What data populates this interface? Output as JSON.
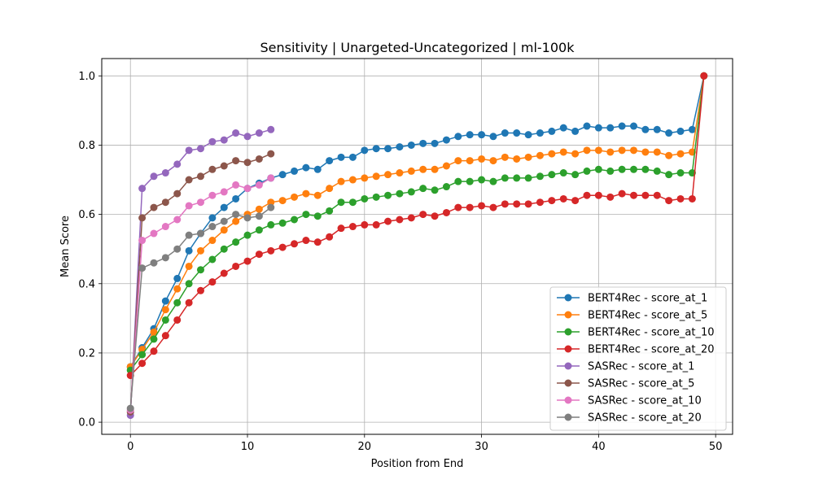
{
  "chart_data": {
    "type": "line",
    "title": "Sensitivity | Unargeted-Uncategorized | ml-100k",
    "xlabel": "Position from End",
    "ylabel": "Mean Score",
    "xlim": [
      -2.45,
      51.45
    ],
    "ylim": [
      -0.035,
      1.05
    ],
    "xticks": [
      0,
      10,
      20,
      30,
      40,
      50
    ],
    "xtick_labels": [
      "0",
      "10",
      "20",
      "30",
      "40",
      "50"
    ],
    "yticks": [
      0.0,
      0.2,
      0.4,
      0.6,
      0.8,
      1.0
    ],
    "ytick_labels": [
      "0.0",
      "0.2",
      "0.4",
      "0.6",
      "0.8",
      "1.0"
    ],
    "grid": true,
    "legend_position": "lower-right",
    "series": [
      {
        "name": "BERT4Rec - score_at_1",
        "color": "#1f77b4",
        "x": [
          0,
          1,
          2,
          3,
          4,
          5,
          6,
          7,
          8,
          9,
          10,
          11,
          12,
          13,
          14,
          15,
          16,
          17,
          18,
          19,
          20,
          21,
          22,
          23,
          24,
          25,
          26,
          27,
          28,
          29,
          30,
          31,
          32,
          33,
          34,
          35,
          36,
          37,
          38,
          39,
          40,
          41,
          42,
          43,
          44,
          45,
          46,
          47,
          48,
          49
        ],
        "values": [
          0.16,
          0.215,
          0.27,
          0.35,
          0.415,
          0.495,
          0.545,
          0.59,
          0.62,
          0.645,
          0.675,
          0.69,
          0.705,
          0.715,
          0.725,
          0.735,
          0.73,
          0.755,
          0.765,
          0.765,
          0.785,
          0.79,
          0.79,
          0.795,
          0.8,
          0.805,
          0.805,
          0.815,
          0.825,
          0.83,
          0.83,
          0.825,
          0.835,
          0.835,
          0.83,
          0.835,
          0.84,
          0.85,
          0.84,
          0.855,
          0.85,
          0.85,
          0.855,
          0.855,
          0.845,
          0.845,
          0.835,
          0.84,
          0.845,
          1.0
        ]
      },
      {
        "name": "BERT4Rec - score_at_5",
        "color": "#ff7f0e",
        "x": [
          0,
          1,
          2,
          3,
          4,
          5,
          6,
          7,
          8,
          9,
          10,
          11,
          12,
          13,
          14,
          15,
          16,
          17,
          18,
          19,
          20,
          21,
          22,
          23,
          24,
          25,
          26,
          27,
          28,
          29,
          30,
          31,
          32,
          33,
          34,
          35,
          36,
          37,
          38,
          39,
          40,
          41,
          42,
          43,
          44,
          45,
          46,
          47,
          48,
          49
        ],
        "values": [
          0.16,
          0.21,
          0.26,
          0.325,
          0.385,
          0.45,
          0.495,
          0.525,
          0.555,
          0.58,
          0.6,
          0.615,
          0.635,
          0.64,
          0.65,
          0.66,
          0.655,
          0.675,
          0.695,
          0.7,
          0.705,
          0.71,
          0.715,
          0.72,
          0.725,
          0.73,
          0.73,
          0.74,
          0.755,
          0.755,
          0.76,
          0.755,
          0.765,
          0.76,
          0.765,
          0.77,
          0.775,
          0.78,
          0.775,
          0.785,
          0.785,
          0.78,
          0.785,
          0.785,
          0.78,
          0.78,
          0.77,
          0.775,
          0.78,
          1.0
        ]
      },
      {
        "name": "BERT4Rec - score_at_10",
        "color": "#2ca02c",
        "x": [
          0,
          1,
          2,
          3,
          4,
          5,
          6,
          7,
          8,
          9,
          10,
          11,
          12,
          13,
          14,
          15,
          16,
          17,
          18,
          19,
          20,
          21,
          22,
          23,
          24,
          25,
          26,
          27,
          28,
          29,
          30,
          31,
          32,
          33,
          34,
          35,
          36,
          37,
          38,
          39,
          40,
          41,
          42,
          43,
          44,
          45,
          46,
          47,
          48,
          49
        ],
        "values": [
          0.15,
          0.195,
          0.24,
          0.295,
          0.345,
          0.4,
          0.44,
          0.47,
          0.5,
          0.52,
          0.54,
          0.555,
          0.57,
          0.575,
          0.585,
          0.6,
          0.595,
          0.61,
          0.635,
          0.635,
          0.645,
          0.65,
          0.655,
          0.66,
          0.665,
          0.675,
          0.67,
          0.68,
          0.695,
          0.695,
          0.7,
          0.695,
          0.705,
          0.705,
          0.705,
          0.71,
          0.715,
          0.72,
          0.715,
          0.725,
          0.73,
          0.725,
          0.73,
          0.73,
          0.73,
          0.725,
          0.715,
          0.72,
          0.72,
          1.0
        ]
      },
      {
        "name": "BERT4Rec - score_at_20",
        "color": "#d62728",
        "x": [
          0,
          1,
          2,
          3,
          4,
          5,
          6,
          7,
          8,
          9,
          10,
          11,
          12,
          13,
          14,
          15,
          16,
          17,
          18,
          19,
          20,
          21,
          22,
          23,
          24,
          25,
          26,
          27,
          28,
          29,
          30,
          31,
          32,
          33,
          34,
          35,
          36,
          37,
          38,
          39,
          40,
          41,
          42,
          43,
          44,
          45,
          46,
          47,
          48,
          49
        ],
        "values": [
          0.135,
          0.17,
          0.205,
          0.25,
          0.295,
          0.345,
          0.38,
          0.405,
          0.43,
          0.45,
          0.465,
          0.485,
          0.495,
          0.505,
          0.515,
          0.525,
          0.52,
          0.535,
          0.56,
          0.565,
          0.57,
          0.57,
          0.58,
          0.585,
          0.59,
          0.6,
          0.595,
          0.605,
          0.62,
          0.62,
          0.625,
          0.62,
          0.63,
          0.63,
          0.63,
          0.635,
          0.64,
          0.645,
          0.64,
          0.655,
          0.655,
          0.65,
          0.66,
          0.655,
          0.655,
          0.655,
          0.64,
          0.645,
          0.645,
          1.0
        ]
      },
      {
        "name": "SASRec - score_at_1",
        "color": "#9467bd",
        "x": [
          0,
          1,
          2,
          3,
          4,
          5,
          6,
          7,
          8,
          9,
          10,
          11,
          12
        ],
        "values": [
          0.02,
          0.675,
          0.71,
          0.72,
          0.745,
          0.785,
          0.79,
          0.81,
          0.815,
          0.835,
          0.825,
          0.835,
          0.845
        ]
      },
      {
        "name": "SASRec - score_at_5",
        "color": "#8c564b",
        "x": [
          0,
          1,
          2,
          3,
          4,
          5,
          6,
          7,
          8,
          9,
          10,
          11,
          12
        ],
        "values": [
          0.03,
          0.59,
          0.62,
          0.635,
          0.66,
          0.7,
          0.71,
          0.73,
          0.74,
          0.755,
          0.75,
          0.76,
          0.775
        ]
      },
      {
        "name": "SASRec - score_at_10",
        "color": "#e377c2",
        "x": [
          0,
          1,
          2,
          3,
          4,
          5,
          6,
          7,
          8,
          9,
          10,
          11,
          12
        ],
        "values": [
          0.035,
          0.525,
          0.545,
          0.565,
          0.585,
          0.625,
          0.635,
          0.655,
          0.665,
          0.685,
          0.675,
          0.685,
          0.705
        ]
      },
      {
        "name": "SASRec - score_at_20",
        "color": "#7f7f7f",
        "x": [
          0,
          1,
          2,
          3,
          4,
          5,
          6,
          7,
          8,
          9,
          10,
          11,
          12
        ],
        "values": [
          0.04,
          0.445,
          0.46,
          0.475,
          0.5,
          0.54,
          0.545,
          0.565,
          0.58,
          0.6,
          0.59,
          0.595,
          0.62
        ]
      }
    ]
  }
}
